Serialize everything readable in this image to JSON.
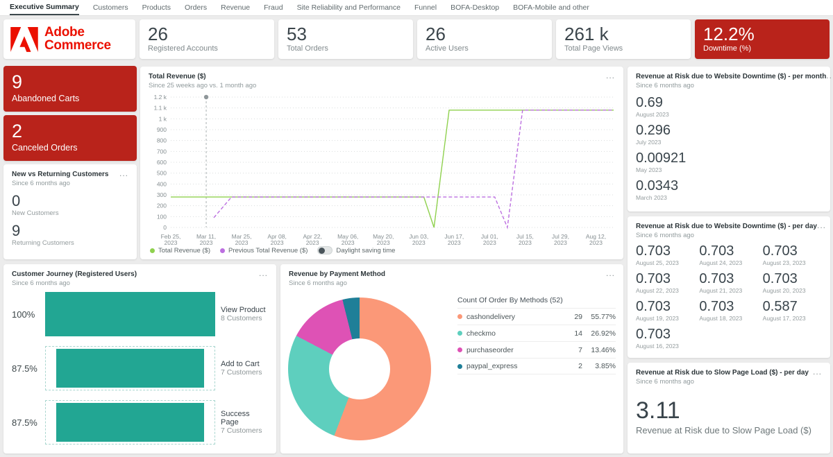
{
  "ui": {
    "overflow_icon": "..."
  },
  "nav": {
    "tabs": [
      "Executive Summary",
      "Customers",
      "Products",
      "Orders",
      "Revenue",
      "Fraud",
      "Site Reliability and Performance",
      "Funnel",
      "BOFA-Desktop",
      "BOFA-Mobile and other"
    ]
  },
  "brand": {
    "line1": "Adobe",
    "line2": "Commerce",
    "color": "#eb1000"
  },
  "kpis": [
    {
      "value": "26",
      "label": "Registered Accounts"
    },
    {
      "value": "53",
      "label": "Total Orders"
    },
    {
      "value": "26",
      "label": "Active Users"
    },
    {
      "value": "261 k",
      "label": "Total Page Views"
    },
    {
      "value": "12.2%",
      "label": "Downtime (%)"
    }
  ],
  "alert_cards": [
    {
      "value": "9",
      "label": "Abandoned Carts"
    },
    {
      "value": "2",
      "label": "Canceled Orders"
    }
  ],
  "new_vs_returning": {
    "title": "New vs Returning Customers",
    "subtitle": "Since 6 months ago",
    "metrics": [
      {
        "value": "0",
        "label": "New Customers"
      },
      {
        "value": "9",
        "label": "Returning Customers"
      }
    ]
  },
  "revenue_chart": {
    "title": "Total Revenue ($)",
    "subtitle": "Since 25 weeks ago vs. 1 month ago",
    "legend": [
      {
        "label": "Total Revenue ($)",
        "color": "#8fd14e"
      },
      {
        "label": "Previous Total Revenue ($)",
        "color": "#bc6fe0"
      }
    ],
    "toggle_label": "Daylight saving time"
  },
  "risk_month": {
    "title": "Revenue at Risk due to Website Downtime ($) - per month",
    "subtitle": "Since 6 months ago",
    "entries": [
      {
        "value": "0.69",
        "label": "August 2023"
      },
      {
        "value": "0.296",
        "label": "July 2023"
      },
      {
        "value": "0.00921",
        "label": "May 2023"
      },
      {
        "value": "0.0343",
        "label": "March 2023"
      }
    ]
  },
  "risk_day": {
    "title": "Revenue at Risk due to Website Downtime ($) - per day",
    "subtitle": "Since 6 months ago",
    "entries": [
      {
        "value": "0.703",
        "label": "August 25, 2023"
      },
      {
        "value": "0.703",
        "label": "August 24, 2023"
      },
      {
        "value": "0.703",
        "label": "August 23, 2023"
      },
      {
        "value": "0.703",
        "label": "August 22, 2023"
      },
      {
        "value": "0.703",
        "label": "August 21, 2023"
      },
      {
        "value": "0.703",
        "label": "August 20, 2023"
      },
      {
        "value": "0.703",
        "label": "August 19, 2023"
      },
      {
        "value": "0.703",
        "label": "August 18, 2023"
      },
      {
        "value": "0.587",
        "label": "August 17, 2023"
      },
      {
        "value": "0.703",
        "label": "August 16, 2023"
      }
    ]
  },
  "slow_load": {
    "title": "Revenue at Risk due to Slow Page Load ($) - per day",
    "subtitle": "Since 6 months ago",
    "value": "3.11",
    "value_label": "Revenue at Risk due to Slow Page Load ($)"
  },
  "journey": {
    "title": "Customer Journey (Registered Users)",
    "subtitle": "Since 6 months ago",
    "bar_color": "#22a693",
    "stages": [
      {
        "pct": "100%",
        "pct_value": 100,
        "name": "View Product",
        "count": "8 Customers"
      },
      {
        "pct": "87.5%",
        "pct_value": 87.5,
        "name": "Add to Cart",
        "count": "7 Customers"
      },
      {
        "pct": "87.5%",
        "pct_value": 87.5,
        "name": "Success Page",
        "count": "7 Customers"
      }
    ]
  },
  "payment": {
    "title": "Revenue by Payment Method",
    "subtitle": "Since 6 months ago",
    "table_title": "Count Of Order By Methods (52)",
    "rows": [
      {
        "name": "cashondelivery",
        "count": 29,
        "pct": "55.77%",
        "pct_value": 55.77,
        "color": "#fb9878"
      },
      {
        "name": "checkmo",
        "count": 14,
        "pct": "26.92%",
        "pct_value": 26.92,
        "color": "#5ecfbe"
      },
      {
        "name": "purchaseorder",
        "count": 7,
        "pct": "13.46%",
        "pct_value": 13.46,
        "color": "#de52b5"
      },
      {
        "name": "paypal_express",
        "count": 2,
        "pct": "3.85%",
        "pct_value": 3.85,
        "color": "#1f7f98"
      }
    ]
  },
  "chart_data": [
    {
      "id": "total_revenue",
      "type": "line",
      "title": "Total Revenue ($)",
      "subtitle": "Since 25 weeks ago vs. 1 month ago",
      "ylim": [
        0,
        1200
      ],
      "y_ticks": [
        "1.2 k",
        "1.1 k",
        "1 k",
        "900",
        "800",
        "700",
        "600",
        "500",
        "400",
        "300",
        "200",
        "100",
        "0"
      ],
      "x_ticks": [
        "Feb 25, 2023",
        "Mar 11, 2023",
        "Mar 25, 2023",
        "Apr 08, 2023",
        "Apr 22, 2023",
        "May 06, 2023",
        "May 20, 2023",
        "Jun 03, 2023",
        "Jun 17, 2023",
        "Jul 01, 2023",
        "Jul 15, 2023",
        "Jul 29, 2023",
        "Aug 12, 2023"
      ],
      "x_total_days": 175,
      "tick_interval_days": 14,
      "grid": "dotted-horizontal",
      "legend_position": "bottom",
      "marker": {
        "day": 14,
        "value": 1200
      },
      "series": [
        {
          "name": "Total Revenue ($)",
          "color": "#8fd14e",
          "style": "solid",
          "points_day_value": [
            [
              0,
              280
            ],
            [
              100,
              280
            ],
            [
              104,
              0
            ],
            [
              110,
              1080
            ],
            [
              175,
              1080
            ]
          ]
        },
        {
          "name": "Previous Total Revenue ($)",
          "color": "#bc6fe0",
          "style": "dashed",
          "points_day_value": [
            [
              17,
              90
            ],
            [
              24,
              280
            ],
            [
              128,
              280
            ],
            [
              133,
              0
            ],
            [
              139,
              1080
            ],
            [
              175,
              1080
            ]
          ]
        }
      ]
    },
    {
      "id": "customer_journey",
      "type": "bar",
      "title": "Customer Journey (Registered Users)",
      "categories": [
        "View Product",
        "Add to Cart",
        "Success Page"
      ],
      "values_pct": [
        100,
        87.5,
        87.5
      ],
      "values_customers": [
        8,
        7,
        7
      ]
    },
    {
      "id": "payment_methods",
      "type": "pie",
      "title": "Count Of Order By Methods (52)",
      "total": 52,
      "labels": [
        "cashondelivery",
        "checkmo",
        "purchaseorder",
        "paypal_express"
      ],
      "values": [
        29,
        14,
        7,
        2
      ],
      "pcts": [
        55.77,
        26.92,
        13.46,
        3.85
      ]
    }
  ]
}
